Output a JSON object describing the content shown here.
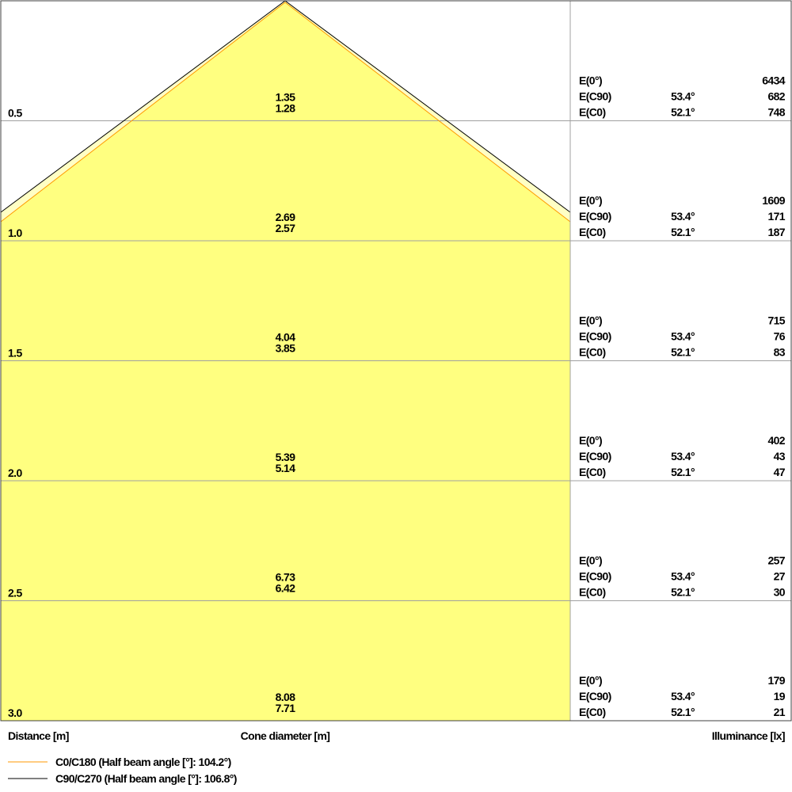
{
  "colors": {
    "fill": "#ffff80",
    "fill_pale": "#ffffc4",
    "c0_line": "#ff9900",
    "c90_line": "#000000",
    "grid": "#a0a0a0",
    "frame": "#404040"
  },
  "rows": [
    {
      "distance": "0.5",
      "cone_c90": "1.35",
      "cone_c0": "1.28",
      "e0_label": "E(0°)",
      "e0": "6434",
      "ec90_label": "E(C90)",
      "ec90_angle": "53.4°",
      "ec90": "682",
      "ec0_label": "E(C0)",
      "ec0_angle": "52.1°",
      "ec0": "748"
    },
    {
      "distance": "1.0",
      "cone_c90": "2.69",
      "cone_c0": "2.57",
      "e0_label": "E(0°)",
      "e0": "1609",
      "ec90_label": "E(C90)",
      "ec90_angle": "53.4°",
      "ec90": "171",
      "ec0_label": "E(C0)",
      "ec0_angle": "52.1°",
      "ec0": "187"
    },
    {
      "distance": "1.5",
      "cone_c90": "4.04",
      "cone_c0": "3.85",
      "e0_label": "E(0°)",
      "e0": "715",
      "ec90_label": "E(C90)",
      "ec90_angle": "53.4°",
      "ec90": "76",
      "ec0_label": "E(C0)",
      "ec0_angle": "52.1°",
      "ec0": "83"
    },
    {
      "distance": "2.0",
      "cone_c90": "5.39",
      "cone_c0": "5.14",
      "e0_label": "E(0°)",
      "e0": "402",
      "ec90_label": "E(C90)",
      "ec90_angle": "53.4°",
      "ec90": "43",
      "ec0_label": "E(C0)",
      "ec0_angle": "52.1°",
      "ec0": "47"
    },
    {
      "distance": "2.5",
      "cone_c90": "6.73",
      "cone_c0": "6.42",
      "e0_label": "E(0°)",
      "e0": "257",
      "ec90_label": "E(C90)",
      "ec90_angle": "53.4°",
      "ec90": "27",
      "ec0_label": "E(C0)",
      "ec0_angle": "52.1°",
      "ec0": "30"
    },
    {
      "distance": "3.0",
      "cone_c90": "8.08",
      "cone_c0": "7.71",
      "e0_label": "E(0°)",
      "e0": "179",
      "ec90_label": "E(C90)",
      "ec90_angle": "53.4°",
      "ec90": "19",
      "ec0_label": "E(C0)",
      "ec0_angle": "52.1°",
      "ec0": "21"
    }
  ],
  "footer": {
    "distance_label": "Distance [m]",
    "cone_label": "Cone diameter [m]",
    "illuminance_label": "Illuminance [lx]"
  },
  "legend": [
    {
      "label": "C0/C180 (Half beam angle [°]: 104.2°)",
      "color": "#ff9900"
    },
    {
      "label": "C90/C270 (Half beam angle [°]: 106.8°)",
      "color": "#000000"
    }
  ]
}
